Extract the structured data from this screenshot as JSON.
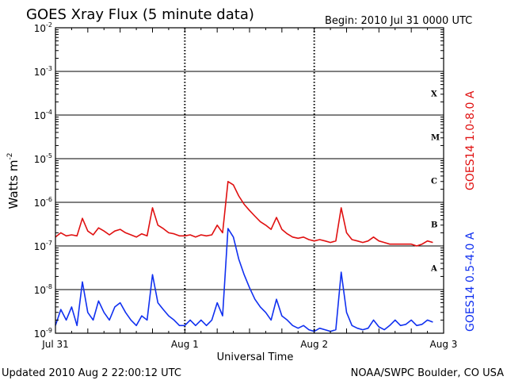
{
  "header": {
    "title": "GOES Xray Flux (5 minute data)",
    "begin": "Begin:  2010 Jul 31 0000 UTC"
  },
  "footer": {
    "updated": "Updated 2010 Aug  2 22:00:12 UTC",
    "credit": "NOAA/SWPC Boulder, CO USA"
  },
  "chart_data": {
    "type": "line",
    "title": "GOES Xray Flux (5 minute data)",
    "xlabel": "Universal Time",
    "ylabel_base": "Watts m",
    "ylabel_exp": "-2",
    "x_unit": "hours since 2010 Jul 31 0000 UTC",
    "xlim": [
      0,
      72
    ],
    "ylim": [
      1e-09,
      0.01
    ],
    "yscale": "log",
    "grid": true,
    "x_ticks": [
      {
        "value": 0,
        "label": "Jul 31"
      },
      {
        "value": 24,
        "label": "Aug 1"
      },
      {
        "value": 48,
        "label": "Aug 2"
      },
      {
        "value": 72,
        "label": "Aug 3"
      }
    ],
    "y_ticks": [
      {
        "value": 1e-09,
        "base": "10",
        "exp": "-9"
      },
      {
        "value": 1e-08,
        "base": "10",
        "exp": "-8"
      },
      {
        "value": 1e-07,
        "base": "10",
        "exp": "-7"
      },
      {
        "value": 1e-06,
        "base": "10",
        "exp": "-6"
      },
      {
        "value": 1e-05,
        "base": "10",
        "exp": "-5"
      },
      {
        "value": 0.0001,
        "base": "10",
        "exp": "-4"
      },
      {
        "value": 0.001,
        "base": "10",
        "exp": "-3"
      },
      {
        "value": 0.01,
        "base": "10",
        "exp": "-2"
      }
    ],
    "flare_classes": [
      {
        "label": "A",
        "value": 3.16e-08
      },
      {
        "label": "B",
        "value": 3.16e-07
      },
      {
        "label": "C",
        "value": 3.16e-06
      },
      {
        "label": "M",
        "value": 3.16e-05
      },
      {
        "label": "X",
        "value": 0.000316
      }
    ],
    "series": [
      {
        "name": "GOES14 1.0-8.0 A",
        "color": "#e01010",
        "x": [
          0,
          1,
          2,
          3,
          4,
          5,
          6,
          7,
          8,
          9,
          10,
          11,
          12,
          13,
          14,
          15,
          16,
          17,
          18,
          19,
          20,
          21,
          22,
          23,
          24,
          25,
          26,
          27,
          28,
          29,
          30,
          31,
          32,
          33,
          34,
          35,
          36,
          37,
          38,
          39,
          40,
          41,
          42,
          43,
          44,
          45,
          46,
          47,
          48,
          49,
          50,
          51,
          52,
          53,
          54,
          55,
          56,
          57,
          58,
          59,
          60,
          61,
          62,
          63,
          64,
          65,
          66,
          67,
          68,
          69,
          70
        ],
        "y": [
          1.6e-07,
          2e-07,
          1.7e-07,
          1.8e-07,
          1.7e-07,
          4.3e-07,
          2.2e-07,
          1.8e-07,
          2.6e-07,
          2.2e-07,
          1.8e-07,
          2.2e-07,
          2.4e-07,
          2e-07,
          1.8e-07,
          1.6e-07,
          1.9e-07,
          1.7e-07,
          7.5e-07,
          3e-07,
          2.5e-07,
          2e-07,
          1.9e-07,
          1.7e-07,
          1.7e-07,
          1.8e-07,
          1.6e-07,
          1.8e-07,
          1.7e-07,
          1.8e-07,
          3e-07,
          2e-07,
          3e-06,
          2.5e-06,
          1.4e-06,
          9e-07,
          6.5e-07,
          4.8e-07,
          3.6e-07,
          3e-07,
          2.4e-07,
          4.5e-07,
          2.4e-07,
          1.9e-07,
          1.6e-07,
          1.5e-07,
          1.6e-07,
          1.4e-07,
          1.3e-07,
          1.4e-07,
          1.3e-07,
          1.2e-07,
          1.3e-07,
          7.5e-07,
          2e-07,
          1.4e-07,
          1.3e-07,
          1.2e-07,
          1.3e-07,
          1.6e-07,
          1.3e-07,
          1.2e-07,
          1.1e-07,
          1.1e-07,
          1.1e-07,
          1.1e-07,
          1.1e-07,
          1e-07,
          1.1e-07,
          1.3e-07,
          1.2e-07
        ]
      },
      {
        "name": "GOES14 0.5-4.0 A",
        "color": "#1030f0",
        "x": [
          0,
          1,
          2,
          3,
          4,
          5,
          6,
          7,
          8,
          9,
          10,
          11,
          12,
          13,
          14,
          15,
          16,
          17,
          18,
          19,
          20,
          21,
          22,
          23,
          24,
          25,
          26,
          27,
          28,
          29,
          30,
          31,
          32,
          33,
          34,
          35,
          36,
          37,
          38,
          39,
          40,
          41,
          42,
          43,
          44,
          45,
          46,
          47,
          48,
          49,
          50,
          51,
          52,
          53,
          54,
          55,
          56,
          57,
          58,
          59,
          60,
          61,
          62,
          63,
          64,
          65,
          66,
          67,
          68,
          69,
          70
        ],
        "y": [
          1.5e-09,
          3.5e-09,
          2e-09,
          4e-09,
          1.5e-09,
          1.5e-08,
          3e-09,
          2e-09,
          5.5e-09,
          3e-09,
          2e-09,
          4e-09,
          5e-09,
          3e-09,
          2e-09,
          1.5e-09,
          2.5e-09,
          2e-09,
          2.2e-08,
          5e-09,
          3.5e-09,
          2.5e-09,
          2e-09,
          1.5e-09,
          1.5e-09,
          2e-09,
          1.5e-09,
          2e-09,
          1.5e-09,
          2e-09,
          5e-09,
          2.5e-09,
          2.5e-07,
          1.6e-07,
          5e-08,
          2.2e-08,
          1.1e-08,
          6e-09,
          4e-09,
          3e-09,
          2e-09,
          6e-09,
          2.5e-09,
          2e-09,
          1.5e-09,
          1.3e-09,
          1.5e-09,
          1.2e-09,
          1.1e-09,
          1.3e-09,
          1.2e-09,
          1.1e-09,
          1.2e-09,
          2.5e-08,
          3e-09,
          1.5e-09,
          1.3e-09,
          1.2e-09,
          1.3e-09,
          2e-09,
          1.4e-09,
          1.2e-09,
          1.5e-09,
          2e-09,
          1.5e-09,
          1.6e-09,
          2e-09,
          1.5e-09,
          1.6e-09,
          2e-09,
          1.8e-09
        ]
      }
    ]
  }
}
